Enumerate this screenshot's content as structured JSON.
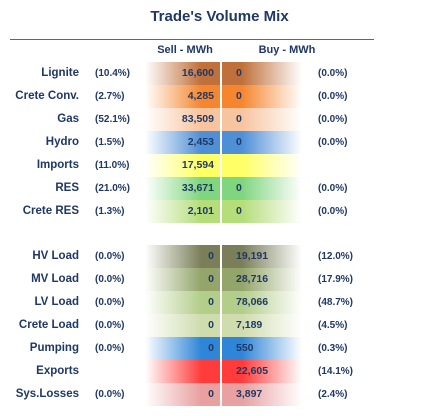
{
  "chart_data": {
    "type": "table",
    "title": "Trade's Volume Mix",
    "columns": [
      "Sell - MWh",
      "Buy - MWh"
    ],
    "rows": [
      {
        "label": "Lignite",
        "sell_pct": "(10.4%)",
        "sell": "16,600",
        "buy": "0",
        "buy_pct": "(0.0%)",
        "sell_color": "#c0703a",
        "buy_color": "#c0703a"
      },
      {
        "label": "Crete Conv.",
        "sell_pct": "(2.7%)",
        "sell": "4,285",
        "buy": "0",
        "buy_pct": "(0.0%)",
        "sell_color": "#f5862f",
        "buy_color": "#f5862f"
      },
      {
        "label": "Gas",
        "sell_pct": "(52.1%)",
        "sell": "83,509",
        "buy": "0",
        "buy_pct": "(0.0%)",
        "sell_color": "#f7c4a0",
        "buy_color": "#f7c4a0"
      },
      {
        "label": "Hydro",
        "sell_pct": "(1.5%)",
        "sell": "2,453",
        "buy": "0",
        "buy_pct": "(0.0%)",
        "sell_color": "#4f8fd6",
        "buy_color": "#4f8fd6"
      },
      {
        "label": "Imports",
        "sell_pct": "(11.0%)",
        "sell": "17,594",
        "buy": "",
        "buy_pct": "",
        "sell_color": "#ffff66",
        "buy_color": "#ffff66"
      },
      {
        "label": "RES",
        "sell_pct": "(21.0%)",
        "sell": "33,671",
        "buy": "0",
        "buy_pct": "(0.0%)",
        "sell_color": "#7fd67f",
        "buy_color": "#7fd67f"
      },
      {
        "label": "Crete RES",
        "sell_pct": "(1.3%)",
        "sell": "2,101",
        "buy": "0",
        "buy_pct": "(0.0%)",
        "sell_color": "#b5dd7a",
        "buy_color": "#b5dd7a"
      },
      {
        "label": "HV Load",
        "sell_pct": "(0.0%)",
        "sell": "0",
        "buy": "19,191",
        "buy_pct": "(12.0%)",
        "sell_color": "#7a7f5a",
        "buy_color": "#7a7f5a"
      },
      {
        "label": "MV Load",
        "sell_pct": "(0.0%)",
        "sell": "0",
        "buy": "28,716",
        "buy_pct": "(17.9%)",
        "sell_color": "#93a56a",
        "buy_color": "#93a56a"
      },
      {
        "label": "LV Load",
        "sell_pct": "(0.0%)",
        "sell": "0",
        "buy": "78,066",
        "buy_pct": "(48.7%)",
        "sell_color": "#b3cd8a",
        "buy_color": "#b3cd8a"
      },
      {
        "label": "Crete Load",
        "sell_pct": "(0.0%)",
        "sell": "0",
        "buy": "7,189",
        "buy_pct": "(4.5%)",
        "sell_color": "#cfdcae",
        "buy_color": "#cfdcae"
      },
      {
        "label": "Pumping",
        "sell_pct": "(0.0%)",
        "sell": "0",
        "buy": "550",
        "buy_pct": "(0.3%)",
        "sell_color": "#2f86d8",
        "buy_color": "#2f86d8"
      },
      {
        "label": "Exports",
        "sell_pct": "",
        "sell": "",
        "buy": "22,605",
        "buy_pct": "(14.1%)",
        "sell_color": "#ff3b3b",
        "buy_color": "#ff3b3b"
      },
      {
        "label": "Sys.Losses",
        "sell_pct": "(0.0%)",
        "sell": "0",
        "buy": "3,897",
        "buy_pct": "(2.4%)",
        "sell_color": "#e8a0a0",
        "buy_color": "#e8a0a0"
      }
    ]
  }
}
